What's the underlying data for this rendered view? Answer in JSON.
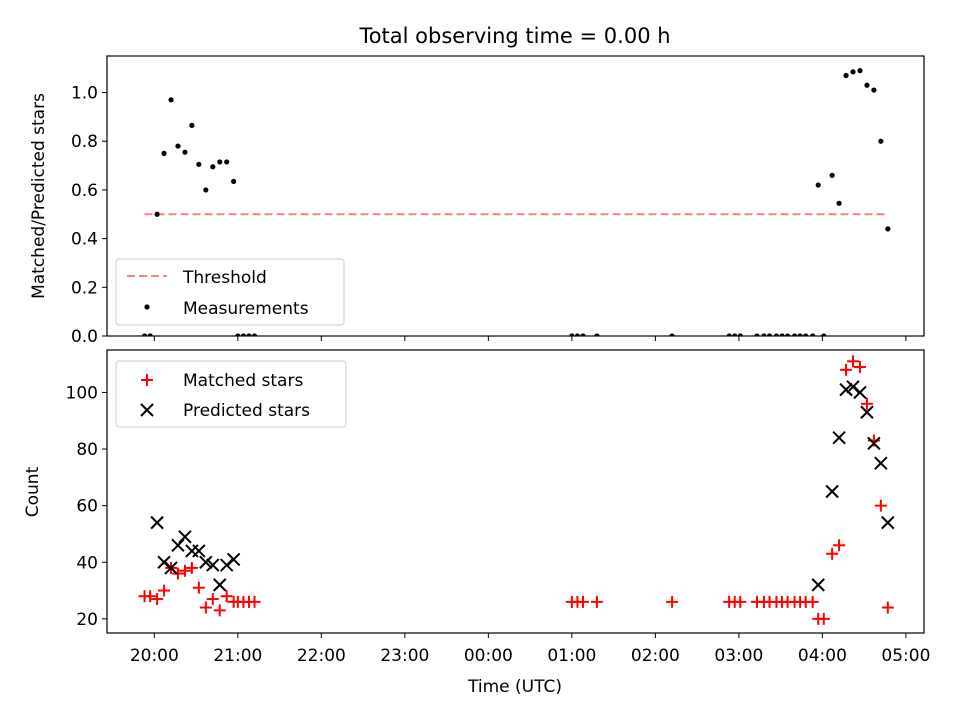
{
  "title": "Total observing time = 0.00 h",
  "chart_data": [
    {
      "type": "scatter",
      "panel": "top",
      "ylabel": "Matched/Predicted stars",
      "xlabel": "",
      "ylim": [
        0,
        1.15
      ],
      "yticks": [
        0.0,
        0.2,
        0.4,
        0.6,
        0.8,
        1.0
      ],
      "ytick_labels": [
        "0.0",
        "0.2",
        "0.4",
        "0.6",
        "0.8",
        "1.0"
      ],
      "legend_position": "lower-left",
      "threshold": {
        "name": "Threshold",
        "value": 0.5,
        "x_start": "19:53",
        "x_end": "04:47",
        "color": "#ff7f7f"
      },
      "series": [
        {
          "name": "Measurements",
          "color": "#000000",
          "marker": "dot",
          "points": [
            [
              "19:53",
              0.0
            ],
            [
              "19:57",
              0.0
            ],
            [
              "20:02",
              0.5
            ],
            [
              "20:07",
              0.75
            ],
            [
              "20:12",
              0.97
            ],
            [
              "20:17",
              0.78
            ],
            [
              "20:22",
              0.755
            ],
            [
              "20:27",
              0.865
            ],
            [
              "20:32",
              0.705
            ],
            [
              "20:37",
              0.6
            ],
            [
              "20:42",
              0.695
            ],
            [
              "20:47",
              0.715
            ],
            [
              "20:52",
              0.715
            ],
            [
              "20:57",
              0.635
            ],
            [
              "21:00",
              0.0
            ],
            [
              "21:04",
              0.0
            ],
            [
              "21:08",
              0.0
            ],
            [
              "21:12",
              0.0
            ],
            [
              "01:00",
              0.0
            ],
            [
              "01:04",
              0.0
            ],
            [
              "01:08",
              0.0
            ],
            [
              "01:18",
              0.0
            ],
            [
              "02:12",
              0.0
            ],
            [
              "02:53",
              0.0
            ],
            [
              "02:57",
              0.0
            ],
            [
              "03:01",
              0.0
            ],
            [
              "03:13",
              0.0
            ],
            [
              "03:18",
              0.0
            ],
            [
              "03:22",
              0.0
            ],
            [
              "03:27",
              0.0
            ],
            [
              "03:31",
              0.0
            ],
            [
              "03:35",
              0.0
            ],
            [
              "03:40",
              0.0
            ],
            [
              "03:44",
              0.0
            ],
            [
              "03:48",
              0.0
            ],
            [
              "03:53",
              0.0
            ],
            [
              "03:57",
              0.62
            ],
            [
              "04:01",
              0.0
            ],
            [
              "04:07",
              0.66
            ],
            [
              "04:12",
              0.545
            ],
            [
              "04:17",
              1.07
            ],
            [
              "04:22",
              1.085
            ],
            [
              "04:27",
              1.09
            ],
            [
              "04:32",
              1.03
            ],
            [
              "04:37",
              1.01
            ],
            [
              "04:42",
              0.8
            ],
            [
              "04:47",
              0.44
            ]
          ]
        }
      ]
    },
    {
      "type": "scatter",
      "panel": "bottom",
      "ylabel": "Count",
      "xlabel": "Time (UTC)",
      "ylim": [
        15,
        115
      ],
      "yticks": [
        20,
        40,
        60,
        80,
        100
      ],
      "ytick_labels": [
        "20",
        "40",
        "60",
        "80",
        "100"
      ],
      "xlim": [
        "19:26",
        "05:13"
      ],
      "xticks": [
        "20:00",
        "21:00",
        "22:00",
        "23:00",
        "00:00",
        "01:00",
        "02:00",
        "03:00",
        "04:00",
        "05:00"
      ],
      "legend_position": "upper-left",
      "series": [
        {
          "name": "Matched stars",
          "color": "#ff0000",
          "marker": "plus",
          "points": [
            [
              "19:53",
              28
            ],
            [
              "19:57",
              28
            ],
            [
              "20:02",
              27
            ],
            [
              "20:07",
              30
            ],
            [
              "20:12",
              38
            ],
            [
              "20:17",
              36
            ],
            [
              "20:22",
              37
            ],
            [
              "20:27",
              38
            ],
            [
              "20:32",
              31
            ],
            [
              "20:37",
              24
            ],
            [
              "20:42",
              27
            ],
            [
              "20:47",
              23
            ],
            [
              "20:52",
              28
            ],
            [
              "20:57",
              26
            ],
            [
              "21:00",
              26
            ],
            [
              "21:04",
              26
            ],
            [
              "21:08",
              26
            ],
            [
              "21:12",
              26
            ],
            [
              "01:00",
              26
            ],
            [
              "01:04",
              26
            ],
            [
              "01:08",
              26
            ],
            [
              "01:18",
              26
            ],
            [
              "02:12",
              26
            ],
            [
              "02:53",
              26
            ],
            [
              "02:57",
              26
            ],
            [
              "03:01",
              26
            ],
            [
              "03:13",
              26
            ],
            [
              "03:18",
              26
            ],
            [
              "03:22",
              26
            ],
            [
              "03:27",
              26
            ],
            [
              "03:31",
              26
            ],
            [
              "03:35",
              26
            ],
            [
              "03:40",
              26
            ],
            [
              "03:44",
              26
            ],
            [
              "03:48",
              26
            ],
            [
              "03:53",
              26
            ],
            [
              "03:57",
              20
            ],
            [
              "04:01",
              20
            ],
            [
              "04:07",
              43
            ],
            [
              "04:12",
              46
            ],
            [
              "04:17",
              108
            ],
            [
              "04:22",
              111
            ],
            [
              "04:27",
              109
            ],
            [
              "04:32",
              96
            ],
            [
              "04:37",
              83
            ],
            [
              "04:42",
              60
            ],
            [
              "04:47",
              24
            ]
          ]
        },
        {
          "name": "Predicted stars",
          "color": "#000000",
          "marker": "x",
          "points": [
            [
              "20:02",
              54
            ],
            [
              "20:07",
              40
            ],
            [
              "20:12",
              38
            ],
            [
              "20:17",
              46
            ],
            [
              "20:22",
              49
            ],
            [
              "20:27",
              44
            ],
            [
              "20:32",
              44
            ],
            [
              "20:37",
              40
            ],
            [
              "20:42",
              39
            ],
            [
              "20:47",
              32
            ],
            [
              "20:52",
              39
            ],
            [
              "20:57",
              41
            ],
            [
              "03:57",
              32
            ],
            [
              "04:07",
              65
            ],
            [
              "04:12",
              84
            ],
            [
              "04:17",
              101
            ],
            [
              "04:22",
              102
            ],
            [
              "04:27",
              100
            ],
            [
              "04:32",
              93
            ],
            [
              "04:37",
              82
            ],
            [
              "04:42",
              75
            ],
            [
              "04:47",
              54
            ]
          ]
        }
      ]
    }
  ]
}
